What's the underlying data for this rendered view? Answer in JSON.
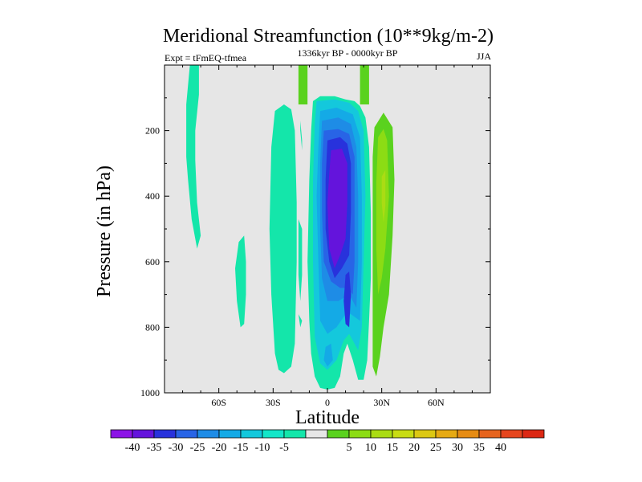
{
  "chart_data": {
    "type": "heatmap",
    "title": "Meridional Streamfunction (10**9kg/m-2)",
    "left_label": "Expt = tFmEQ-tfmea",
    "center_label": "1336kyr BP - 0000kyr BP",
    "right_label": "JJA",
    "xlabel": "Latitude",
    "ylabel": "Pressure (in hPa)",
    "xlim": [
      -90,
      90
    ],
    "ylim": [
      1000,
      0
    ],
    "x_ticks": [
      {
        "v": -60,
        "label": "60S"
      },
      {
        "v": -30,
        "label": "30S"
      },
      {
        "v": 0,
        "label": "0"
      },
      {
        "v": 30,
        "label": "30N"
      },
      {
        "v": 60,
        "label": "60N"
      }
    ],
    "y_ticks": [
      {
        "v": 200,
        "label": "200"
      },
      {
        "v": 400,
        "label": "400"
      },
      {
        "v": 600,
        "label": "600"
      },
      {
        "v": 800,
        "label": "800"
      },
      {
        "v": 1000,
        "label": "1000"
      }
    ],
    "background_color": "#e6e6e6",
    "colorbar": {
      "colors": [
        "#8c14e6",
        "#6414dc",
        "#2832dc",
        "#2864e6",
        "#1e8ce6",
        "#14aae6",
        "#14c8dc",
        "#14e6c8",
        "#14e6aa",
        "#e6e6e6",
        "#5ad21e",
        "#8cdc14",
        "#aadc14",
        "#c8dc14",
        "#dcc814",
        "#e6aa14",
        "#e68c14",
        "#e6641e",
        "#e6461e",
        "#dc2814"
      ],
      "labels": [
        "-40",
        "-35",
        "-30",
        "-25",
        "-20",
        "-15",
        "-10",
        "-5",
        "5",
        "10",
        "15",
        "20",
        "25",
        "30",
        "35",
        "40"
      ]
    },
    "regions": [
      {
        "color": "#14e6aa",
        "pts": [
          [
            -76,
            0
          ],
          [
            -71,
            0
          ],
          [
            -71,
            90
          ],
          [
            -73,
            200
          ],
          [
            -73,
            290
          ],
          [
            -72,
            420
          ],
          [
            -70,
            520
          ],
          [
            -72,
            560
          ],
          [
            -75,
            470
          ],
          [
            -77,
            350
          ],
          [
            -78,
            280
          ],
          [
            -78,
            120
          ]
        ]
      },
      {
        "color": "#14e6aa",
        "pts": [
          [
            -46,
            520
          ],
          [
            -45,
            600
          ],
          [
            -45,
            700
          ],
          [
            -46,
            790
          ],
          [
            -48,
            800
          ],
          [
            -50,
            720
          ],
          [
            -51,
            620
          ],
          [
            -49,
            540
          ]
        ]
      },
      {
        "color": "#14e6aa",
        "pts": [
          [
            -29,
            140
          ],
          [
            -24,
            120
          ],
          [
            -20,
            135
          ],
          [
            -18,
            200
          ],
          [
            -17,
            420
          ],
          [
            -17,
            600
          ],
          [
            -18,
            850
          ],
          [
            -20,
            920
          ],
          [
            -24,
            940
          ],
          [
            -27,
            930
          ],
          [
            -29,
            880
          ],
          [
            -31,
            700
          ],
          [
            -32,
            500
          ],
          [
            -31,
            250
          ]
        ]
      },
      {
        "color": "#14e6aa",
        "pts": [
          [
            -16,
            470
          ],
          [
            -16,
            640
          ],
          [
            -15,
            720
          ],
          [
            -14,
            640
          ],
          [
            -14,
            500
          ]
        ]
      },
      {
        "color": "#14e6aa",
        "pts": [
          [
            -15,
            170
          ],
          [
            -14,
            230
          ],
          [
            -14,
            260
          ],
          [
            -15,
            200
          ]
        ]
      },
      {
        "color": "#14e6aa",
        "pts": [
          [
            -16,
            760
          ],
          [
            -15,
            800
          ],
          [
            -14,
            780
          ]
        ]
      },
      {
        "color": "#5ad21e",
        "pts": [
          [
            -16,
            0
          ],
          [
            -11,
            0
          ],
          [
            -11,
            120
          ],
          [
            -16,
            120
          ]
        ]
      },
      {
        "color": "#5ad21e",
        "pts": [
          [
            18,
            0
          ],
          [
            23,
            0
          ],
          [
            23,
            120
          ],
          [
            18,
            120
          ]
        ]
      },
      {
        "color": "#14e6aa",
        "pts": [
          [
            -8,
            110
          ],
          [
            -4,
            95
          ],
          [
            4,
            95
          ],
          [
            10,
            105
          ],
          [
            15,
            110
          ],
          [
            18,
            125
          ],
          [
            21,
            160
          ],
          [
            23,
            250
          ],
          [
            24,
            450
          ],
          [
            24,
            650
          ],
          [
            23,
            780
          ],
          [
            22,
            900
          ],
          [
            20,
            960
          ],
          [
            17,
            960
          ],
          [
            14,
            900
          ],
          [
            11,
            850
          ],
          [
            9,
            880
          ],
          [
            7,
            950
          ],
          [
            4,
            985
          ],
          [
            0,
            990
          ],
          [
            -4,
            985
          ],
          [
            -7,
            950
          ],
          [
            -9,
            880
          ],
          [
            -10,
            780
          ],
          [
            -11,
            600
          ],
          [
            -10,
            350
          ],
          [
            -9,
            200
          ]
        ]
      },
      {
        "color": "#14c8dc",
        "pts": [
          [
            -6,
            110
          ],
          [
            4,
            105
          ],
          [
            12,
            115
          ],
          [
            17,
            140
          ],
          [
            20,
            200
          ],
          [
            21,
            400
          ],
          [
            20,
            600
          ],
          [
            19,
            800
          ],
          [
            17,
            870
          ],
          [
            12,
            820
          ],
          [
            9,
            840
          ],
          [
            5,
            900
          ],
          [
            0,
            930
          ],
          [
            -4,
            910
          ],
          [
            -7,
            830
          ],
          [
            -8,
            600
          ],
          [
            -8,
            350
          ],
          [
            -7,
            180
          ]
        ]
      },
      {
        "color": "#14aae6",
        "pts": [
          [
            -4,
            140
          ],
          [
            5,
            130
          ],
          [
            14,
            150
          ],
          [
            18,
            220
          ],
          [
            19,
            400
          ],
          [
            19,
            600
          ],
          [
            18,
            780
          ],
          [
            13,
            760
          ],
          [
            10,
            760
          ],
          [
            5,
            800
          ],
          [
            0,
            820
          ],
          [
            -4,
            780
          ],
          [
            -5,
            600
          ],
          [
            -6,
            400
          ],
          [
            -5,
            250
          ]
        ]
      },
      {
        "color": "#1e8ce6",
        "pts": [
          [
            -3,
            170
          ],
          [
            6,
            160
          ],
          [
            13,
            180
          ],
          [
            16,
            250
          ],
          [
            17,
            400
          ],
          [
            17,
            600
          ],
          [
            16,
            740
          ],
          [
            12,
            700
          ],
          [
            6,
            720
          ],
          [
            0,
            720
          ],
          [
            -3,
            650
          ],
          [
            -4,
            500
          ],
          [
            -4,
            300
          ]
        ]
      },
      {
        "color": "#2864e6",
        "pts": [
          [
            -2,
            200
          ],
          [
            6,
            195
          ],
          [
            12,
            210
          ],
          [
            15,
            280
          ],
          [
            15,
            450
          ],
          [
            15,
            600
          ],
          [
            14,
            700
          ],
          [
            11,
            680
          ],
          [
            7,
            680
          ],
          [
            2,
            660
          ],
          [
            -2,
            600
          ],
          [
            -3,
            450
          ],
          [
            -3,
            300
          ]
        ]
      },
      {
        "color": "#2832dc",
        "pts": [
          [
            0,
            230
          ],
          [
            7,
            220
          ],
          [
            11,
            240
          ],
          [
            13,
            300
          ],
          [
            13,
            450
          ],
          [
            12,
            580
          ],
          [
            8,
            620
          ],
          [
            4,
            650
          ],
          [
            1,
            600
          ],
          [
            -1,
            500
          ],
          [
            -1,
            350
          ]
        ]
      },
      {
        "color": "#6414dc",
        "pts": [
          [
            2,
            260
          ],
          [
            8,
            255
          ],
          [
            11,
            300
          ],
          [
            11,
            420
          ],
          [
            10,
            530
          ],
          [
            7,
            580
          ],
          [
            4,
            620
          ],
          [
            1,
            560
          ],
          [
            0,
            420
          ],
          [
            1,
            330
          ]
        ]
      },
      {
        "color": "#2832dc",
        "pts": [
          [
            10,
            640
          ],
          [
            12,
            630
          ],
          [
            13,
            700
          ],
          [
            12,
            800
          ],
          [
            10,
            790
          ],
          [
            9,
            720
          ]
        ]
      },
      {
        "color": "#14aae6",
        "pts": [
          [
            -1,
            860
          ],
          [
            2,
            850
          ],
          [
            3,
            900
          ],
          [
            0,
            920
          ],
          [
            -2,
            900
          ]
        ]
      },
      {
        "color": "#5ad21e",
        "pts": [
          [
            26,
            190
          ],
          [
            31,
            145
          ],
          [
            36,
            190
          ],
          [
            37,
            350
          ],
          [
            36,
            520
          ],
          [
            34,
            700
          ],
          [
            31,
            800
          ],
          [
            29,
            890
          ],
          [
            27,
            950
          ],
          [
            25,
            920
          ],
          [
            25,
            720
          ],
          [
            25,
            460
          ],
          [
            25,
            280
          ]
        ]
      },
      {
        "color": "#8cdc14",
        "pts": [
          [
            28,
            220
          ],
          [
            31,
            195
          ],
          [
            33,
            230
          ],
          [
            34,
            400
          ],
          [
            32,
            560
          ],
          [
            30,
            650
          ],
          [
            28,
            700
          ],
          [
            27,
            560
          ],
          [
            27,
            360
          ]
        ]
      },
      {
        "color": "#aadc14",
        "pts": [
          [
            30,
            340
          ],
          [
            32,
            320
          ],
          [
            32,
            430
          ],
          [
            31,
            480
          ],
          [
            30,
            420
          ]
        ]
      }
    ]
  }
}
